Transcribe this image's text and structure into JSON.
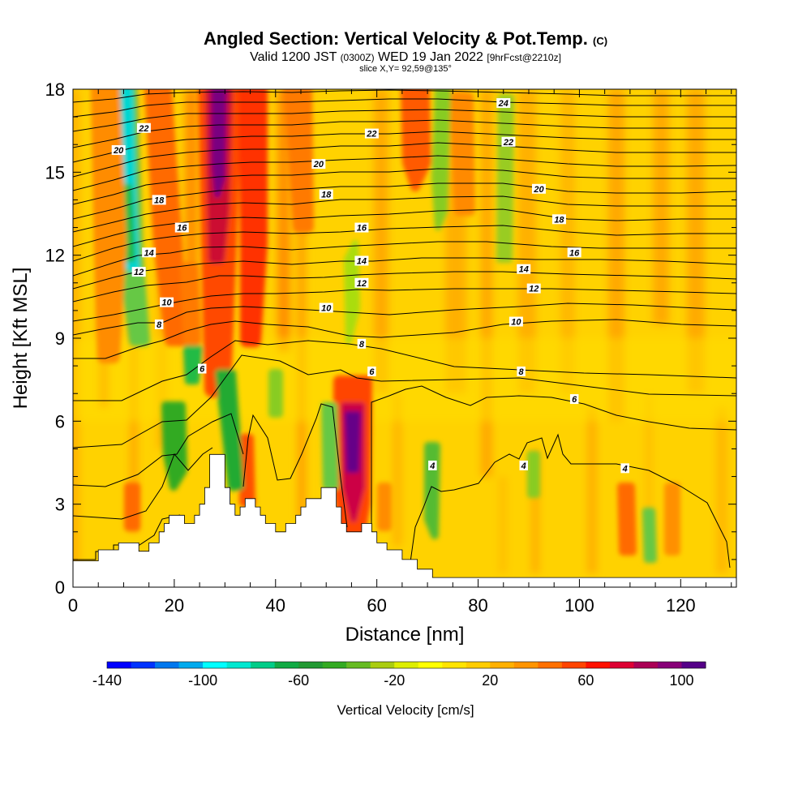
{
  "title": {
    "main": "Angled Section: Vertical Velocity & Pot.Temp.",
    "units_tag": "(C)",
    "valid_prefix": "Valid 1200 JST",
    "utc": "(0300Z)",
    "valid_date": "WED 19 Jan 2022",
    "fcst": "[9hrFcst@2210z]",
    "slice": "slice X,Y= 92,59@135°"
  },
  "chart_data": {
    "type": "heatmap",
    "xlabel": "Distance [nm]",
    "ylabel": "Height [Kft MSL]",
    "xlim": [
      0,
      131
    ],
    "ylim": [
      0,
      18
    ],
    "xticks": [
      0,
      20,
      40,
      60,
      80,
      100,
      120
    ],
    "yticks": [
      0,
      3,
      6,
      9,
      12,
      15,
      18
    ],
    "terrain_kft": [
      [
        0,
        0.95
      ],
      [
        5,
        0.95
      ],
      [
        5,
        1.35
      ],
      [
        9,
        1.35
      ],
      [
        9,
        1.6
      ],
      [
        13,
        1.6
      ],
      [
        13,
        1.3
      ],
      [
        15,
        1.3
      ],
      [
        15,
        1.6
      ],
      [
        17,
        1.6
      ],
      [
        17,
        2.0
      ],
      [
        18,
        2.0
      ],
      [
        18,
        2.3
      ],
      [
        19,
        2.3
      ],
      [
        19,
        2.6
      ],
      [
        22,
        2.6
      ],
      [
        22,
        2.3
      ],
      [
        24,
        2.3
      ],
      [
        24,
        2.6
      ],
      [
        25,
        2.6
      ],
      [
        25,
        3.0
      ],
      [
        26,
        3.0
      ],
      [
        26,
        3.6
      ],
      [
        27,
        3.6
      ],
      [
        27,
        4.8
      ],
      [
        30,
        4.8
      ],
      [
        30,
        3.6
      ],
      [
        31,
        3.6
      ],
      [
        31,
        3.0
      ],
      [
        32,
        3.0
      ],
      [
        32,
        2.6
      ],
      [
        33,
        2.6
      ],
      [
        33,
        2.9
      ],
      [
        34,
        2.9
      ],
      [
        34,
        3.2
      ],
      [
        36,
        3.2
      ],
      [
        36,
        2.9
      ],
      [
        37,
        2.9
      ],
      [
        37,
        2.6
      ],
      [
        38,
        2.6
      ],
      [
        38,
        2.3
      ],
      [
        40,
        2.3
      ],
      [
        40,
        2.0
      ],
      [
        42,
        2.0
      ],
      [
        42,
        2.3
      ],
      [
        44,
        2.3
      ],
      [
        44,
        2.6
      ],
      [
        45,
        2.6
      ],
      [
        45,
        2.9
      ],
      [
        46,
        2.9
      ],
      [
        46,
        3.2
      ],
      [
        49,
        3.2
      ],
      [
        49,
        3.6
      ],
      [
        52,
        3.6
      ],
      [
        52,
        2.9
      ],
      [
        53,
        2.9
      ],
      [
        53,
        2.3
      ],
      [
        54,
        2.3
      ],
      [
        54,
        2.0
      ],
      [
        57,
        2.0
      ],
      [
        57,
        2.3
      ],
      [
        59,
        2.3
      ],
      [
        59,
        2.0
      ],
      [
        60,
        2.0
      ],
      [
        60,
        1.6
      ],
      [
        62,
        1.6
      ],
      [
        62,
        1.35
      ],
      [
        65,
        1.35
      ],
      [
        65,
        1.0
      ],
      [
        68,
        1.0
      ],
      [
        68,
        0.65
      ],
      [
        71,
        0.65
      ],
      [
        71,
        0.35
      ],
      [
        131,
        0.35
      ]
    ],
    "contours_C": [
      4,
      6,
      8,
      10,
      12,
      14,
      16,
      18,
      20,
      22,
      24
    ],
    "contour_labels": [
      {
        "text": "22",
        "x": 14,
        "y": 16.6
      },
      {
        "text": "20",
        "x": 9,
        "y": 15.8
      },
      {
        "text": "18",
        "x": 17,
        "y": 14.0
      },
      {
        "text": "16",
        "x": 21.5,
        "y": 13.0
      },
      {
        "text": "14",
        "x": 15,
        "y": 12.1
      },
      {
        "text": "12",
        "x": 13,
        "y": 11.4
      },
      {
        "text": "10",
        "x": 18.5,
        "y": 10.3
      },
      {
        "text": "8",
        "x": 17,
        "y": 9.5
      },
      {
        "text": "6",
        "x": 25.5,
        "y": 7.9
      },
      {
        "text": "22",
        "x": 59,
        "y": 16.4
      },
      {
        "text": "20",
        "x": 48.5,
        "y": 15.3
      },
      {
        "text": "18",
        "x": 50,
        "y": 14.2
      },
      {
        "text": "16",
        "x": 57,
        "y": 13.0
      },
      {
        "text": "14",
        "x": 57,
        "y": 11.8
      },
      {
        "text": "12",
        "x": 57,
        "y": 11.0
      },
      {
        "text": "10",
        "x": 50,
        "y": 10.1
      },
      {
        "text": "8",
        "x": 57,
        "y": 8.8
      },
      {
        "text": "6",
        "x": 59,
        "y": 7.8
      },
      {
        "text": "24",
        "x": 85,
        "y": 17.5
      },
      {
        "text": "22",
        "x": 86,
        "y": 16.1
      },
      {
        "text": "20",
        "x": 92,
        "y": 14.4
      },
      {
        "text": "18",
        "x": 96,
        "y": 13.3
      },
      {
        "text": "16",
        "x": 99,
        "y": 12.1
      },
      {
        "text": "14",
        "x": 89,
        "y": 11.5
      },
      {
        "text": "12",
        "x": 91,
        "y": 10.8
      },
      {
        "text": "10",
        "x": 87.5,
        "y": 9.6
      },
      {
        "text": "8",
        "x": 88.5,
        "y": 7.8
      },
      {
        "text": "6",
        "x": 99,
        "y": 6.8
      },
      {
        "text": "4",
        "x": 71,
        "y": 4.4
      },
      {
        "text": "4",
        "x": 89,
        "y": 4.4
      },
      {
        "text": "4",
        "x": 109,
        "y": 4.3
      }
    ],
    "colorbar": {
      "label": "Vertical Velocity [cm/s]",
      "vmin": -140,
      "vmax": 110,
      "step": 10,
      "tick_labels": [
        "-140",
        "-100",
        "-60",
        "-20",
        "20",
        "60",
        "100"
      ],
      "colors": [
        "#0000ff",
        "#0033ff",
        "#0077ee",
        "#00aaee",
        "#00ffff",
        "#00e8d0",
        "#00cc88",
        "#11aa44",
        "#229933",
        "#33aa22",
        "#66bb22",
        "#aacc11",
        "#ddee00",
        "#ffff00",
        "#ffe400",
        "#ffcc00",
        "#ffb000",
        "#ff9400",
        "#ff7000",
        "#ff4400",
        "#ff1100",
        "#dd0033",
        "#aa0055",
        "#880077",
        "#550088"
      ]
    }
  }
}
